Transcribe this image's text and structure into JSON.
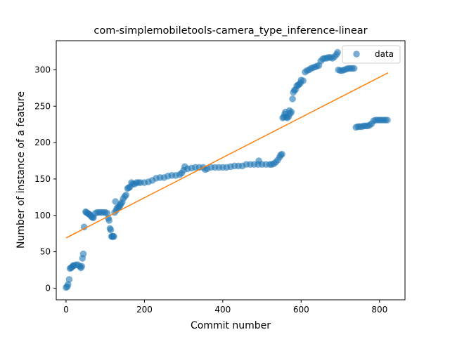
{
  "chart_data": {
    "type": "scatter",
    "title": "com-simplemobiletools-camera_type_inference-linear",
    "xlabel": "Commit number",
    "ylabel": "Number of instance of a feature",
    "xlim": [
      -25,
      865
    ],
    "ylim": [
      -16,
      340
    ],
    "xticks": [
      0,
      200,
      400,
      600,
      800
    ],
    "yticks": [
      0,
      50,
      100,
      150,
      200,
      250,
      300
    ],
    "legend": {
      "position": "top-right",
      "entries": [
        "data"
      ]
    },
    "colors": {
      "data": "#1f77b4",
      "fit": "#ff7f0e"
    },
    "series": [
      {
        "name": "data",
        "points": [
          [
            0,
            1
          ],
          [
            3,
            2
          ],
          [
            5,
            5
          ],
          [
            8,
            12
          ],
          [
            10,
            27
          ],
          [
            13,
            28
          ],
          [
            15,
            29
          ],
          [
            18,
            31
          ],
          [
            20,
            31
          ],
          [
            25,
            32
          ],
          [
            30,
            32
          ],
          [
            35,
            30
          ],
          [
            38,
            28
          ],
          [
            40,
            30
          ],
          [
            42,
            41
          ],
          [
            44,
            47
          ],
          [
            46,
            84
          ],
          [
            50,
            105
          ],
          [
            52,
            104
          ],
          [
            55,
            103
          ],
          [
            58,
            102
          ],
          [
            60,
            101
          ],
          [
            63,
            100
          ],
          [
            65,
            98
          ],
          [
            68,
            97
          ],
          [
            70,
            97
          ],
          [
            75,
            103
          ],
          [
            80,
            104
          ],
          [
            85,
            104
          ],
          [
            90,
            104
          ],
          [
            95,
            104
          ],
          [
            100,
            104
          ],
          [
            105,
            103
          ],
          [
            108,
            96
          ],
          [
            110,
            93
          ],
          [
            112,
            82
          ],
          [
            114,
            80
          ],
          [
            116,
            71
          ],
          [
            118,
            71
          ],
          [
            120,
            71
          ],
          [
            122,
            71
          ],
          [
            124,
            104
          ],
          [
            126,
            119
          ],
          [
            128,
            107
          ],
          [
            130,
            110
          ],
          [
            133,
            111
          ],
          [
            136,
            112
          ],
          [
            138,
            114
          ],
          [
            140,
            116
          ],
          [
            143,
            118
          ],
          [
            146,
            123
          ],
          [
            150,
            126
          ],
          [
            153,
            128
          ],
          [
            157,
            137
          ],
          [
            160,
            138
          ],
          [
            163,
            139
          ],
          [
            167,
            145
          ],
          [
            170,
            143
          ],
          [
            175,
            143
          ],
          [
            180,
            145
          ],
          [
            185,
            145
          ],
          [
            190,
            145
          ],
          [
            200,
            145
          ],
          [
            210,
            146
          ],
          [
            220,
            148
          ],
          [
            230,
            151
          ],
          [
            240,
            152
          ],
          [
            250,
            152
          ],
          [
            260,
            154
          ],
          [
            270,
            155
          ],
          [
            280,
            155
          ],
          [
            290,
            156
          ],
          [
            295,
            158
          ],
          [
            300,
            162
          ],
          [
            303,
            167
          ],
          [
            310,
            164
          ],
          [
            320,
            165
          ],
          [
            330,
            166
          ],
          [
            340,
            166
          ],
          [
            350,
            166
          ],
          [
            355,
            163
          ],
          [
            360,
            164
          ],
          [
            370,
            166
          ],
          [
            380,
            166
          ],
          [
            390,
            166
          ],
          [
            400,
            166
          ],
          [
            410,
            166
          ],
          [
            420,
            167
          ],
          [
            430,
            168
          ],
          [
            440,
            168
          ],
          [
            450,
            168
          ],
          [
            460,
            170
          ],
          [
            470,
            170
          ],
          [
            480,
            170
          ],
          [
            490,
            170
          ],
          [
            492,
            175
          ],
          [
            500,
            170
          ],
          [
            510,
            170
          ],
          [
            520,
            170
          ],
          [
            525,
            170
          ],
          [
            530,
            171
          ],
          [
            535,
            173
          ],
          [
            540,
            176
          ],
          [
            545,
            180
          ],
          [
            548,
            183
          ],
          [
            551,
            184
          ],
          [
            553,
            234
          ],
          [
            556,
            235
          ],
          [
            558,
            239
          ],
          [
            560,
            242
          ],
          [
            562,
            235
          ],
          [
            565,
            234
          ],
          [
            568,
            236
          ],
          [
            570,
            244
          ],
          [
            572,
            240
          ],
          [
            575,
            242
          ],
          [
            578,
            260
          ],
          [
            580,
            269
          ],
          [
            583,
            272
          ],
          [
            586,
            273
          ],
          [
            589,
            278
          ],
          [
            592,
            279
          ],
          [
            595,
            280
          ],
          [
            598,
            282
          ],
          [
            600,
            286
          ],
          [
            605,
            285
          ],
          [
            610,
            297
          ],
          [
            615,
            299
          ],
          [
            620,
            300
          ],
          [
            625,
            302
          ],
          [
            630,
            303
          ],
          [
            635,
            304
          ],
          [
            640,
            305
          ],
          [
            645,
            306
          ],
          [
            650,
            312
          ],
          [
            655,
            315
          ],
          [
            660,
            316
          ],
          [
            665,
            316
          ],
          [
            670,
            317
          ],
          [
            675,
            317
          ],
          [
            680,
            316
          ],
          [
            685,
            318
          ],
          [
            690,
            321
          ],
          [
            693,
            324
          ],
          [
            695,
            300
          ],
          [
            700,
            299
          ],
          [
            705,
            299
          ],
          [
            710,
            300
          ],
          [
            715,
            301
          ],
          [
            720,
            302
          ],
          [
            725,
            302
          ],
          [
            730,
            302
          ],
          [
            735,
            302
          ],
          [
            740,
            221
          ],
          [
            745,
            222
          ],
          [
            750,
            222
          ],
          [
            755,
            222
          ],
          [
            760,
            223
          ],
          [
            765,
            223
          ],
          [
            770,
            223
          ],
          [
            775,
            224
          ],
          [
            780,
            226
          ],
          [
            785,
            230
          ],
          [
            790,
            231
          ],
          [
            795,
            231
          ],
          [
            800,
            231
          ],
          [
            805,
            231
          ],
          [
            810,
            231
          ],
          [
            815,
            231
          ],
          [
            820,
            231
          ]
        ]
      }
    ],
    "fit_line": {
      "x": [
        0,
        822
      ],
      "y": [
        69,
        296
      ]
    }
  }
}
